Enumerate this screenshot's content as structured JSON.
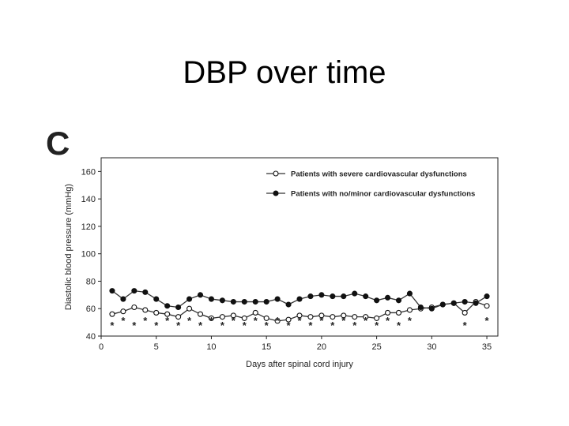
{
  "slide": {
    "title": "DBP over time",
    "panel_letter": "C"
  },
  "colors": {
    "line": "#333333",
    "marker_open_fill": "#ffffff",
    "marker_filled": "#111111"
  },
  "chart_data": {
    "type": "line",
    "xlabel": "Days after spinal cord injury",
    "ylabel": "Diastolic blood pressure (mmHg)",
    "xlim": [
      0,
      36
    ],
    "ylim": [
      40,
      170
    ],
    "xticks": [
      0,
      5,
      10,
      15,
      20,
      25,
      30,
      35
    ],
    "yticks": [
      40,
      60,
      80,
      100,
      120,
      140,
      160
    ],
    "grid": false,
    "legend_position": "top-right",
    "x": [
      1,
      2,
      3,
      4,
      5,
      6,
      7,
      8,
      9,
      10,
      11,
      12,
      13,
      14,
      15,
      16,
      17,
      18,
      19,
      20,
      21,
      22,
      23,
      24,
      25,
      26,
      27,
      28,
      29,
      30,
      31,
      32,
      33,
      34,
      35
    ],
    "series": [
      {
        "name": "Patients with severe cardiovascular dysfunctions",
        "marker": "open-circle",
        "values": [
          56,
          58,
          61,
          59,
          57,
          56,
          54,
          60,
          56,
          53,
          54,
          55,
          53,
          57,
          53,
          51,
          52,
          55,
          54,
          55,
          54,
          55,
          54,
          54,
          53,
          57,
          57,
          59,
          60,
          61,
          63,
          64,
          57,
          65,
          62
        ]
      },
      {
        "name": "Patients with no/minor cardiovascular dysfunctions",
        "marker": "filled-circle",
        "values": [
          73,
          67,
          73,
          72,
          67,
          62,
          61,
          67,
          70,
          67,
          66,
          65,
          65,
          65,
          65,
          67,
          63,
          67,
          69,
          70,
          69,
          69,
          71,
          69,
          66,
          68,
          66,
          71,
          61,
          60,
          63,
          64,
          65,
          64,
          69
        ]
      }
    ],
    "significance_marker": "*",
    "significant_days": [
      1,
      2,
      3,
      4,
      5,
      6,
      7,
      8,
      9,
      10,
      11,
      12,
      13,
      14,
      15,
      16,
      17,
      18,
      19,
      20,
      21,
      22,
      23,
      24,
      25,
      26,
      27,
      28,
      33,
      35
    ]
  }
}
